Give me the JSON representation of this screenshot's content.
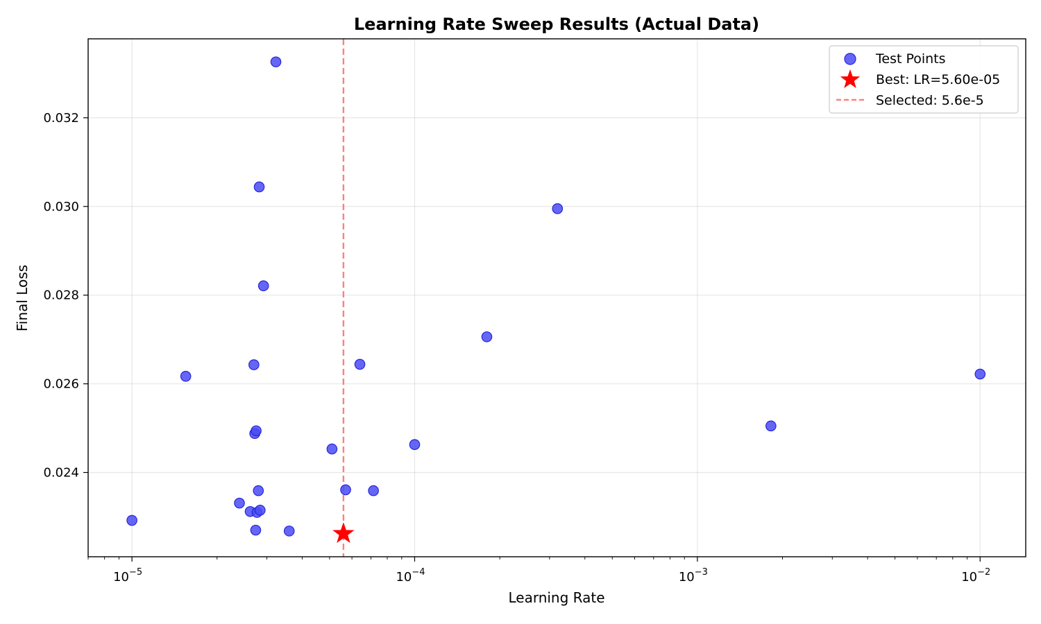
{
  "chart_data": {
    "type": "scatter",
    "title": "Learning Rate Sweep Results (Actual Data)",
    "xlabel": "Learning Rate",
    "ylabel": "Final Loss",
    "x_scale": "log",
    "xlim": [
      7e-06,
      0.0145
    ],
    "ylim": [
      0.0221,
      0.03378
    ],
    "grid": true,
    "legend_position": "top-right",
    "x_ticks": [
      {
        "value": 1e-05,
        "base": "10",
        "exp": "−5"
      },
      {
        "value": 0.0001,
        "base": "10",
        "exp": "−4"
      },
      {
        "value": 0.001,
        "base": "10",
        "exp": "−3"
      },
      {
        "value": 0.01,
        "base": "10",
        "exp": "−2"
      }
    ],
    "y_ticks": [
      {
        "value": 0.024,
        "label": "0.024"
      },
      {
        "value": 0.026,
        "label": "0.026"
      },
      {
        "value": 0.028,
        "label": "0.028"
      },
      {
        "value": 0.03,
        "label": "0.030"
      },
      {
        "value": 0.032,
        "label": "0.032"
      }
    ],
    "series": [
      {
        "name": "Test Points",
        "color": "#4b4bf5",
        "marker": "circle",
        "points": [
          {
            "x": 1e-05,
            "y": 0.02292
          },
          {
            "x": 1.55e-05,
            "y": 0.02617
          },
          {
            "x": 2.4e-05,
            "y": 0.02331
          },
          {
            "x": 2.62e-05,
            "y": 0.02312
          },
          {
            "x": 2.7e-05,
            "y": 0.02643
          },
          {
            "x": 2.72e-05,
            "y": 0.02488
          },
          {
            "x": 2.74e-05,
            "y": 0.0227
          },
          {
            "x": 2.75e-05,
            "y": 0.02494
          },
          {
            "x": 2.77e-05,
            "y": 0.0231
          },
          {
            "x": 2.8e-05,
            "y": 0.02359
          },
          {
            "x": 2.82e-05,
            "y": 0.03044
          },
          {
            "x": 2.84e-05,
            "y": 0.02315
          },
          {
            "x": 2.92e-05,
            "y": 0.02821
          },
          {
            "x": 3.23e-05,
            "y": 0.03326
          },
          {
            "x": 3.6e-05,
            "y": 0.02268
          },
          {
            "x": 5.1e-05,
            "y": 0.02453
          },
          {
            "x": 5.7e-05,
            "y": 0.02361
          },
          {
            "x": 6.4e-05,
            "y": 0.02644
          },
          {
            "x": 7.15e-05,
            "y": 0.02359
          },
          {
            "x": 0.0001,
            "y": 0.02463
          },
          {
            "x": 0.00018,
            "y": 0.02706
          },
          {
            "x": 0.00032,
            "y": 0.02995
          },
          {
            "x": 0.00182,
            "y": 0.02505
          },
          {
            "x": 0.01,
            "y": 0.02622
          }
        ]
      },
      {
        "name": "Best: LR=5.60e-05",
        "color": "#ff0000",
        "marker": "star",
        "points": [
          {
            "x": 5.6e-05,
            "y": 0.02262
          }
        ]
      }
    ],
    "reference_lines": [
      {
        "name": "Selected: 5.6e-5",
        "orientation": "vertical",
        "x": 5.6e-05,
        "color": "#ff7f7f",
        "style": "dashed"
      }
    ]
  }
}
